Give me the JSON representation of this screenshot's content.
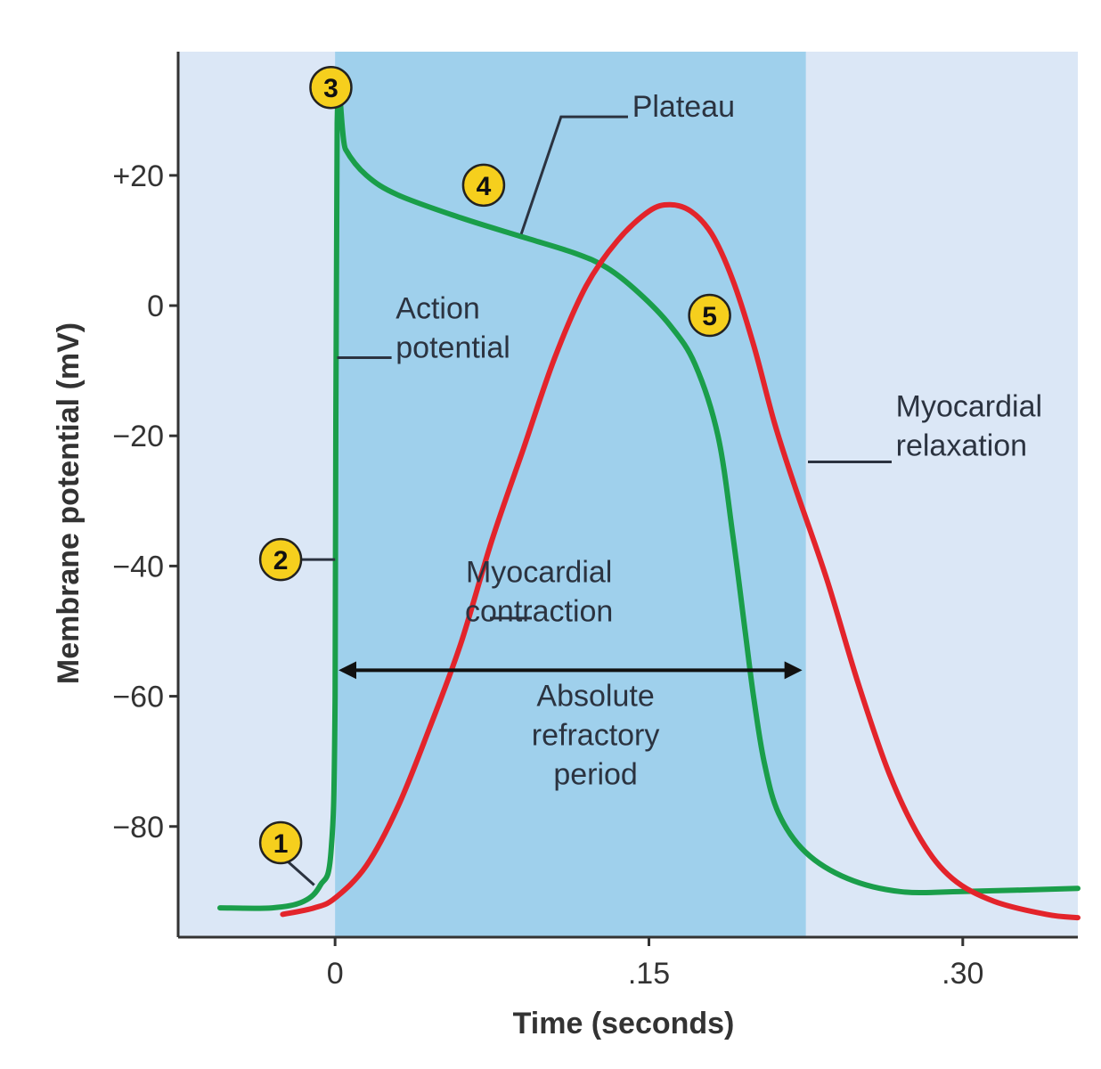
{
  "chart_data": {
    "type": "line",
    "title": "",
    "xlabel": "Time (seconds)",
    "ylabel": "Membrane potential (mV)",
    "xlim": [
      -0.075,
      0.355
    ],
    "ylim": [
      -97,
      39
    ],
    "x_ticks": [
      {
        "value": 0,
        "label": "0"
      },
      {
        "value": 0.15,
        "label": ".15"
      },
      {
        "value": 0.3,
        "label": ".30"
      }
    ],
    "y_ticks": [
      {
        "value": 20,
        "label": "+20"
      },
      {
        "value": 0,
        "label": "0"
      },
      {
        "value": -20,
        "label": "−20"
      },
      {
        "value": -40,
        "label": "−40"
      },
      {
        "value": -60,
        "label": "−60"
      },
      {
        "value": -80,
        "label": "−80"
      }
    ],
    "grid": false,
    "shaded_region": {
      "x_start": 0,
      "x_end": 0.225,
      "color": "#9fd0ec"
    },
    "background_color": "#dbe7f6",
    "series": [
      {
        "color": "#1a9e4a",
        "points": [
          [
            -0.055,
            -92.5
          ],
          [
            -0.03,
            -92.5
          ],
          [
            -0.015,
            -91.5
          ],
          [
            -0.007,
            -89
          ],
          [
            -0.002,
            -84
          ],
          [
            0.0,
            -60
          ],
          [
            0.001,
            28
          ],
          [
            0.005,
            24
          ],
          [
            0.015,
            20
          ],
          [
            0.03,
            17
          ],
          [
            0.06,
            13.5
          ],
          [
            0.09,
            10.5
          ],
          [
            0.115,
            8
          ],
          [
            0.13,
            5.8
          ],
          [
            0.145,
            2
          ],
          [
            0.16,
            -3
          ],
          [
            0.172,
            -9
          ],
          [
            0.183,
            -20
          ],
          [
            0.19,
            -35
          ],
          [
            0.196,
            -50
          ],
          [
            0.2,
            -60
          ],
          [
            0.205,
            -70
          ],
          [
            0.212,
            -78
          ],
          [
            0.225,
            -84
          ],
          [
            0.245,
            -88
          ],
          [
            0.27,
            -90
          ],
          [
            0.3,
            -90
          ],
          [
            0.355,
            -89.5
          ]
        ]
      },
      {
        "color": "#e3242b",
        "points": [
          [
            -0.025,
            -93.5
          ],
          [
            -0.01,
            -92.5
          ],
          [
            0.0,
            -91
          ],
          [
            0.015,
            -86
          ],
          [
            0.03,
            -77
          ],
          [
            0.045,
            -65
          ],
          [
            0.06,
            -52
          ],
          [
            0.075,
            -36
          ],
          [
            0.09,
            -22
          ],
          [
            0.105,
            -8
          ],
          [
            0.12,
            3
          ],
          [
            0.135,
            10
          ],
          [
            0.15,
            14.5
          ],
          [
            0.16,
            15.5
          ],
          [
            0.17,
            14.5
          ],
          [
            0.18,
            11
          ],
          [
            0.19,
            4
          ],
          [
            0.2,
            -6
          ],
          [
            0.21,
            -18
          ],
          [
            0.22,
            -28
          ],
          [
            0.235,
            -42
          ],
          [
            0.25,
            -58
          ],
          [
            0.265,
            -72
          ],
          [
            0.28,
            -82
          ],
          [
            0.295,
            -88
          ],
          [
            0.315,
            -91.5
          ],
          [
            0.34,
            -93.5
          ],
          [
            0.355,
            -94
          ]
        ]
      }
    ],
    "arrow": {
      "x_start": 0,
      "x_end": 0.225,
      "y": -56
    },
    "annotations": [
      {
        "lines": [
          "Plateau"
        ],
        "pos": [
          0.142,
          29
        ],
        "anchor": "start",
        "leader": [
          [
            0.089,
            11
          ],
          [
            0.108,
            29
          ],
          [
            0.14,
            29
          ]
        ]
      },
      {
        "lines": [
          "Action",
          "potential"
        ],
        "pos": [
          0.029,
          -2
        ],
        "anchor": "start",
        "leader": [
          [
            0.001,
            -8
          ],
          [
            0.027,
            -8
          ]
        ]
      },
      {
        "lines": [
          "Myocardial",
          "relaxation"
        ],
        "pos": [
          0.268,
          -17
        ],
        "anchor": "start",
        "leader": [
          [
            0.226,
            -24
          ],
          [
            0.266,
            -24
          ]
        ]
      },
      {
        "lines": [
          "Myocardial",
          "contraction"
        ],
        "pos": [
          0.0975,
          -42.5
        ],
        "anchor": "middle",
        "leader": [
          [
            0.074,
            -48
          ],
          [
            0.094,
            -48
          ]
        ]
      },
      {
        "lines": [
          "Absolute",
          "refractory",
          "period"
        ],
        "pos": [
          0.1245,
          -61.5
        ],
        "anchor": "middle",
        "leader": null
      }
    ],
    "markers": [
      {
        "label": "1",
        "pos": [
          -0.026,
          -82.5
        ],
        "leader": [
          [
            -0.024,
            -85
          ],
          [
            -0.01,
            -89
          ]
        ]
      },
      {
        "label": "2",
        "pos": [
          -0.026,
          -39
        ],
        "leader": [
          [
            -0.02,
            -39
          ],
          [
            0.0,
            -39
          ]
        ]
      },
      {
        "label": "3",
        "pos": [
          -0.002,
          33.5
        ],
        "leader": null
      },
      {
        "label": "4",
        "pos": [
          0.071,
          18.5
        ],
        "leader": null
      },
      {
        "label": "5",
        "pos": [
          0.179,
          -1.5
        ],
        "leader": null
      }
    ]
  }
}
